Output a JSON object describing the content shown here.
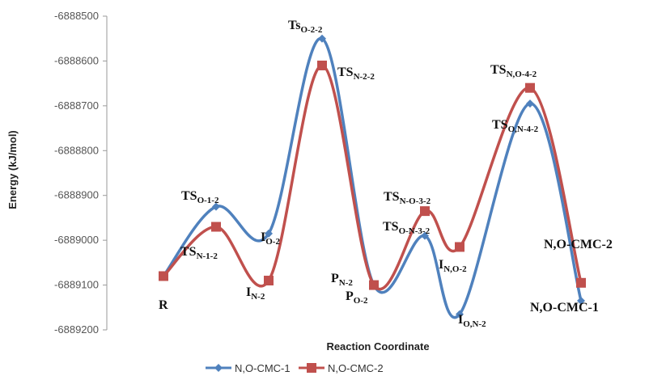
{
  "chart_data": {
    "type": "line",
    "title": "",
    "xlabel": "Reaction Coordinate",
    "ylabel": "Energy (kJ/mol)",
    "ylim": [
      -6889200,
      -6888500
    ],
    "yticks": [
      -6888500,
      -6888600,
      -6888700,
      -6888800,
      -6888900,
      -6889000,
      -6889100,
      -6889200
    ],
    "categories": [
      "R",
      "TS(O-1-2) / TS(N-1-2)",
      "I(O-2) / I(N-2)",
      "Ts(O-2-2) / TS(N-2-2)",
      "P(N-2) / P(O-2)",
      "TS(N-O-3-2) / TS(O-N-3-2)",
      "I(N-O-2) / I(O-N-2)",
      "TS(N-O-4-2) / TS(O-N-4-2)",
      "N,O-CMC-2 / N,O-CMC-1"
    ],
    "series": [
      {
        "name": "N,O-CMC-1",
        "color": "#4f81bd",
        "values": [
          -6889080,
          -6888925,
          -6888985,
          -6888550,
          -6889100,
          -6888990,
          -6889165,
          -6888695,
          -6889135
        ]
      },
      {
        "name": "N,O-CMC-2",
        "color": "#c0504d",
        "values": [
          -6889080,
          -6888970,
          -6889090,
          -6888610,
          -6889100,
          -6888935,
          -6889015,
          -6888660,
          -6889095
        ]
      }
    ],
    "legend_position": "bottom",
    "grid": false,
    "annotations": [
      {
        "label": "R",
        "main": "R",
        "sub": ""
      },
      {
        "label": "TS_O-1-2",
        "main": "TS",
        "sub": "O-1-2"
      },
      {
        "label": "TS_N-1-2",
        "main": "TS",
        "sub": "N-1-2"
      },
      {
        "label": "I_O-2",
        "main": "I",
        "sub": "O-2"
      },
      {
        "label": "I_N-2",
        "main": "I",
        "sub": "N-2"
      },
      {
        "label": "Ts_O-2-2",
        "main": "Ts",
        "sub": "O-2-2"
      },
      {
        "label": "TS_N-2-2",
        "main": "TS",
        "sub": "N-2-2"
      },
      {
        "label": "P_N-2",
        "main": "P",
        "sub": "N-2"
      },
      {
        "label": "P_O-2",
        "main": "P",
        "sub": "O-2"
      },
      {
        "label": "TS_N-O-3-2",
        "main": "TS",
        "sub": "N-O-3-2"
      },
      {
        "label": "TS_O-N-3-2",
        "main": "TS",
        "sub": "O-N-3-2"
      },
      {
        "label": "I_N,O-2",
        "main": "I",
        "sub": "N,O-2"
      },
      {
        "label": "I_O,N-2",
        "main": "I",
        "sub": "O,N-2"
      },
      {
        "label": "TS_N,O-4-2",
        "main": "TS",
        "sub": "N,O-4-2"
      },
      {
        "label": "TS_O,N-4-2",
        "main": "TS",
        "sub": "O,N-4-2"
      },
      {
        "label": "N,O-CMC-2",
        "main": "N,O-CMC-2",
        "sub": ""
      },
      {
        "label": "N,O-CMC-1",
        "main": "N,O-CMC-1",
        "sub": ""
      }
    ]
  }
}
